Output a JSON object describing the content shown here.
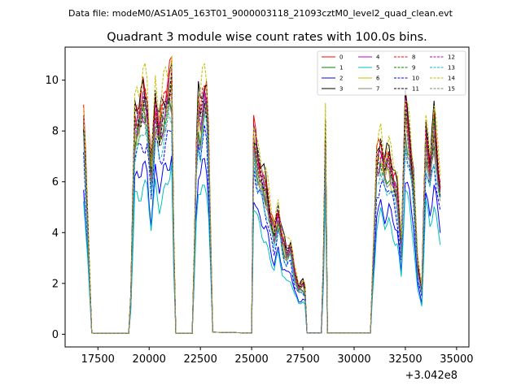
{
  "header": {
    "datafile": "Data file: modeM0/AS1A05_163T01_9000003118_21093cztM0_level2_quad_clean.evt"
  },
  "chart_data": {
    "type": "line",
    "title": "Quadrant 3 module wise count rates with 100.0s bins.",
    "xlabel": "",
    "ylabel": "",
    "x_offset_text": "+3.042e8",
    "xlim": [
      15900,
      35600
    ],
    "ylim": [
      -0.5,
      11.3
    ],
    "xticks": [
      17500,
      20000,
      22500,
      25000,
      27500,
      30000,
      32500,
      35000
    ],
    "xtick_labels": [
      "17500",
      "20000",
      "22500",
      "25000",
      "27500",
      "30000",
      "32500",
      "35000"
    ],
    "yticks": [
      0,
      2,
      4,
      6,
      8,
      10
    ],
    "ytick_labels": [
      "0",
      "2",
      "4",
      "6",
      "8",
      "10"
    ],
    "grid": false,
    "legend_position": "top-right",
    "legend_columns": 4,
    "series": [
      {
        "name": "0",
        "color": "#ff0000",
        "style": "solid",
        "factor": 1.02
      },
      {
        "name": "1",
        "color": "#008000",
        "style": "solid",
        "factor": 0.92
      },
      {
        "name": "2",
        "color": "#0000ff",
        "style": "solid",
        "factor": 0.7
      },
      {
        "name": "3",
        "color": "#000000",
        "style": "solid",
        "factor": 1.03
      },
      {
        "name": "4",
        "color": "#bf00bf",
        "style": "solid",
        "factor": 0.96
      },
      {
        "name": "5",
        "color": "#00bfbf",
        "style": "solid",
        "factor": 0.63
      },
      {
        "name": "6",
        "color": "#bfbf00",
        "style": "solid",
        "factor": 0.93
      },
      {
        "name": "7",
        "color": "#808080",
        "style": "solid",
        "factor": 0.9
      },
      {
        "name": "8",
        "color": "#ff0000",
        "style": "dashed",
        "factor": 0.99
      },
      {
        "name": "9",
        "color": "#008000",
        "style": "dashed",
        "factor": 0.95
      },
      {
        "name": "10",
        "color": "#0000ff",
        "style": "dashed",
        "factor": 0.82
      },
      {
        "name": "11",
        "color": "#000000",
        "style": "dashed",
        "factor": 0.98
      },
      {
        "name": "12",
        "color": "#bf00bf",
        "style": "dashed",
        "factor": 0.97
      },
      {
        "name": "13",
        "color": "#00bfbf",
        "style": "dashed",
        "factor": 0.85
      },
      {
        "name": "14",
        "color": "#bfbf00",
        "style": "dashed",
        "factor": 1.08
      },
      {
        "name": "15",
        "color": "#808080",
        "style": "dashed",
        "factor": 0.91
      }
    ],
    "base_profile": {
      "x": [
        16800,
        17000,
        17200,
        17400,
        19000,
        19100,
        19300,
        19500,
        19700,
        19900,
        20100,
        20300,
        20500,
        20700,
        20900,
        21100,
        21200,
        21300,
        22100,
        22200,
        22350,
        22500,
        22700,
        22800,
        22900,
        23100,
        25000,
        25100,
        25300,
        25500,
        25700,
        25900,
        26100,
        26300,
        26500,
        26700,
        26900,
        27100,
        27300,
        27500,
        27600,
        27700,
        28400,
        28500,
        28600,
        28700,
        30800,
        30900,
        31100,
        31300,
        31500,
        31700,
        31900,
        32100,
        32300,
        32500,
        32700,
        32900,
        33100,
        33300,
        33500,
        33700,
        33900,
        34100,
        34250
      ],
      "y": [
        8.6,
        4.5,
        0.05,
        0.03,
        0.03,
        1.5,
        8.6,
        8.7,
        9.4,
        9.1,
        6.5,
        9.2,
        8.1,
        8.9,
        9.6,
        10.2,
        3.8,
        0.03,
        0.03,
        3.2,
        9.2,
        8.6,
        9.7,
        9.4,
        7.5,
        0.08,
        0.05,
        8.0,
        6.9,
        6.3,
        5.8,
        4.8,
        4.0,
        4.9,
        3.8,
        3.3,
        3.5,
        2.4,
        1.9,
        2.0,
        1.8,
        0.05,
        0.05,
        2.8,
        8.3,
        0.05,
        0.05,
        2.5,
        6.8,
        7.4,
        6.7,
        7.0,
        6.3,
        5.7,
        3.5,
        9.0,
        7.8,
        6.0,
        2.7,
        1.8,
        8.0,
        6.7,
        8.3,
        6.5,
        5.5
      ]
    }
  }
}
